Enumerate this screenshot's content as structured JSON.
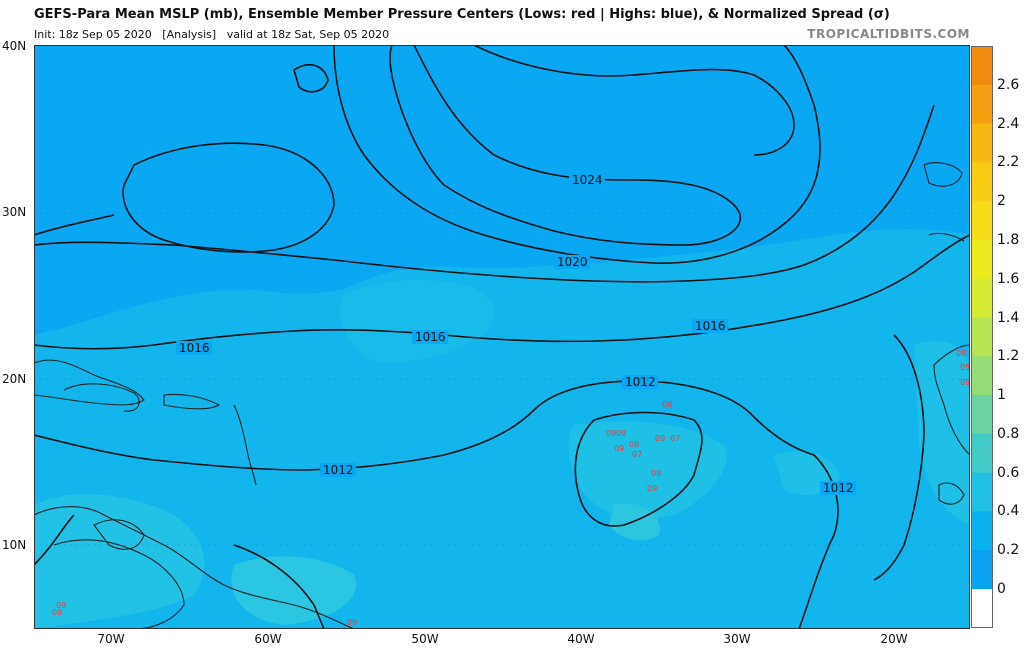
{
  "header": {
    "title": "GEFS-Para Mean MSLP (mb), Ensemble Member Pressure Centers (Lows: red | Highs: blue), & Normalized Spread (σ)",
    "init_text": "Init: 18z Sep 05 2020",
    "analysis_text": "[Analysis]",
    "valid_text": "valid at 18z Sat, Sep 05 2020",
    "credit": "TROPICALTIDBITS.COM"
  },
  "axes": {
    "lat_labels": [
      "40N",
      "30N",
      "20N",
      "10N"
    ],
    "lon_labels": [
      "70W",
      "60W",
      "50W",
      "40W",
      "30W",
      "20W"
    ]
  },
  "colorbar": {
    "labels": [
      "2.6",
      "2.4",
      "2.2",
      "2",
      "1.8",
      "1.6",
      "1.4",
      "1.2",
      "1",
      "0.8",
      "0.6",
      "0.4",
      "0.2",
      "0"
    ],
    "colors": [
      "#f08a10",
      "#f4a010",
      "#f7b812",
      "#f8cc14",
      "#f6dc16",
      "#ecea1c",
      "#d4ea34",
      "#b6e452",
      "#94dc76",
      "#6cd4a2",
      "#44cbc8",
      "#22c0e4",
      "#0cb2ee",
      "#08a4f0"
    ]
  },
  "contours": {
    "labels": [
      "1024",
      "1020",
      "1016",
      "1016",
      "1016",
      "1012",
      "1012",
      "1012"
    ]
  },
  "pressure_centers": {
    "lows": [
      "08",
      "09",
      "09",
      "08",
      "09",
      "07",
      "09",
      "07",
      "09",
      "09",
      "09",
      "09",
      "08",
      "05",
      "09",
      "09"
    ],
    "low_color": "#e83c3c"
  },
  "colors": {
    "ocean_spread_low": "#0aa6f0",
    "ocean_spread_mid": "#12b8ec",
    "ocean_spread_high": "#22c4e4",
    "land_outline": "#222222",
    "contour": "#111111"
  }
}
